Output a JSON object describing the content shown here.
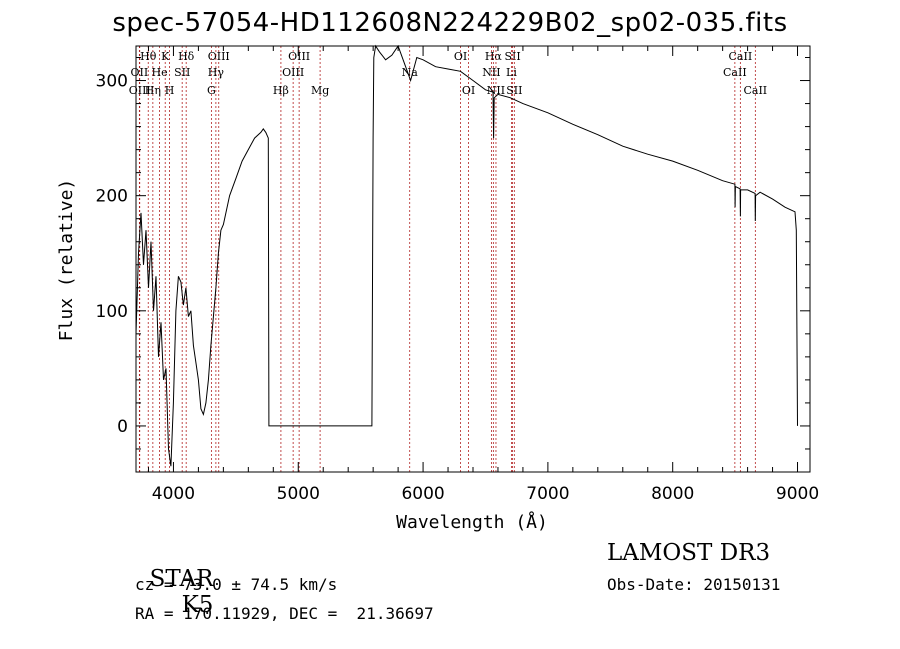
{
  "chart_data": {
    "type": "line",
    "title": "spec-57054-HD112608N224229B02_sp02-035.fits",
    "xlabel": "Wavelength (Å)",
    "ylabel": "Flux (relative)",
    "xlim": [
      3700,
      9100
    ],
    "ylim": [
      -40,
      330
    ],
    "x_ticks": [
      4000,
      5000,
      6000,
      7000,
      8000,
      9000
    ],
    "y_ticks": [
      0,
      100,
      200,
      300
    ],
    "series": [
      {
        "name": "flux",
        "x": [
          3700,
          3720,
          3740,
          3760,
          3780,
          3800,
          3820,
          3840,
          3860,
          3880,
          3900,
          3920,
          3940,
          3960,
          3980,
          4000,
          4020,
          4040,
          4060,
          4080,
          4100,
          4120,
          4140,
          4160,
          4180,
          4200,
          4220,
          4240,
          4260,
          4280,
          4300,
          4320,
          4340,
          4360,
          4380,
          4400,
          4450,
          4500,
          4550,
          4600,
          4650,
          4700,
          4720,
          4740,
          4760,
          4765,
          4800,
          5000,
          5200,
          5400,
          5590,
          5600,
          5605,
          5620,
          5650,
          5700,
          5750,
          5800,
          5850,
          5900,
          5950,
          6000,
          6100,
          6200,
          6300,
          6400,
          6500,
          6560,
          6565,
          6570,
          6600,
          6700,
          6800,
          7000,
          7200,
          7400,
          7600,
          7800,
          8000,
          8200,
          8400,
          8498,
          8500,
          8502,
          8540,
          8542,
          8544,
          8600,
          8660,
          8662,
          8664,
          8700,
          8800,
          8900,
          8980,
          8990,
          9000
        ],
        "y": [
          80,
          150,
          185,
          140,
          170,
          120,
          160,
          100,
          130,
          60,
          90,
          40,
          50,
          -20,
          -35,
          20,
          100,
          130,
          125,
          105,
          120,
          95,
          100,
          70,
          55,
          40,
          15,
          10,
          20,
          40,
          70,
          95,
          120,
          150,
          170,
          175,
          200,
          215,
          230,
          240,
          250,
          255,
          258,
          255,
          250,
          0,
          0,
          0,
          0,
          0,
          0,
          250,
          320,
          330,
          325,
          318,
          322,
          330,
          315,
          300,
          320,
          318,
          312,
          310,
          308,
          300,
          292,
          290,
          250,
          285,
          288,
          285,
          280,
          272,
          262,
          253,
          243,
          236,
          230,
          222,
          213,
          210,
          190,
          208,
          206,
          182,
          205,
          205,
          202,
          178,
          200,
          203,
          197,
          190,
          186,
          170,
          0
        ]
      }
    ],
    "spectral_lines": [
      {
        "label": "Hθ",
        "x": 3798,
        "row": 0
      },
      {
        "label": "K",
        "x": 3934,
        "row": 0
      },
      {
        "label": "Hδ",
        "x": 4102,
        "row": 0
      },
      {
        "label": "OIII",
        "x": 4363,
        "row": 0
      },
      {
        "label": "OIII",
        "x": 5007,
        "row": 0
      },
      {
        "label": "OI",
        "x": 6300,
        "row": 0
      },
      {
        "label": "Hα",
        "x": 6563,
        "row": 0
      },
      {
        "label": "SII",
        "x": 6717,
        "row": 0
      },
      {
        "label": "CaII",
        "x": 8542,
        "row": 0
      },
      {
        "label": "OII",
        "x": 3727,
        "row": 1
      },
      {
        "label": "He",
        "x": 3889,
        "row": 1
      },
      {
        "label": "SII",
        "x": 4070,
        "row": 1
      },
      {
        "label": "Hγ",
        "x": 4340,
        "row": 1
      },
      {
        "label": "OIII",
        "x": 4959,
        "row": 1
      },
      {
        "label": "NII",
        "x": 6548,
        "row": 1
      },
      {
        "label": "Li",
        "x": 6708,
        "row": 1
      },
      {
        "label": "CaII",
        "x": 8498,
        "row": 1
      },
      {
        "label": "OIII",
        "x": 3730,
        "row": 2
      },
      {
        "label": "Hη",
        "x": 3835,
        "row": 2
      },
      {
        "label": "H",
        "x": 3969,
        "row": 2
      },
      {
        "label": "G",
        "x": 4304,
        "row": 2
      },
      {
        "label": "Hβ",
        "x": 4861,
        "row": 2
      },
      {
        "label": "Mg",
        "x": 5175,
        "row": 2
      },
      {
        "label": "Na",
        "x": 5893,
        "row": 1
      },
      {
        "label": "OI",
        "x": 6364,
        "row": 2
      },
      {
        "label": "NII",
        "x": 6584,
        "row": 2
      },
      {
        "label": "SII",
        "x": 6731,
        "row": 2
      },
      {
        "label": "CaII",
        "x": 8662,
        "row": 2
      }
    ]
  },
  "info": {
    "object_class": "STAR",
    "subclass": "K5",
    "survey": "LAMOST DR3",
    "cz": "cz = 73.0 ± 74.5 km/s",
    "obs_date": "Obs-Date: 20150131",
    "coords": "RA = 170.11929, DEC =  21.36697"
  }
}
